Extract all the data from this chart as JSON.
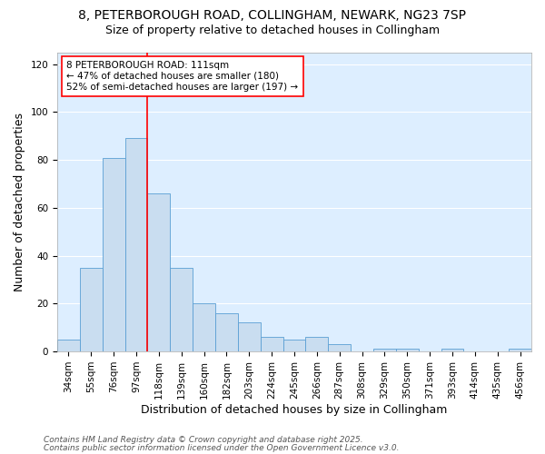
{
  "title_line1": "8, PETERBOROUGH ROAD, COLLINGHAM, NEWARK, NG23 7SP",
  "title_line2": "Size of property relative to detached houses in Collingham",
  "xlabel": "Distribution of detached houses by size in Collingham",
  "ylabel": "Number of detached properties",
  "bar_labels": [
    "34sqm",
    "55sqm",
    "76sqm",
    "97sqm",
    "118sqm",
    "139sqm",
    "160sqm",
    "182sqm",
    "203sqm",
    "224sqm",
    "245sqm",
    "266sqm",
    "287sqm",
    "308sqm",
    "329sqm",
    "350sqm",
    "371sqm",
    "393sqm",
    "414sqm",
    "435sqm",
    "456sqm"
  ],
  "bar_values": [
    5,
    35,
    81,
    89,
    66,
    35,
    20,
    16,
    12,
    6,
    5,
    6,
    3,
    0,
    1,
    1,
    0,
    1,
    0,
    0,
    1
  ],
  "bar_color": "#c9ddf0",
  "bar_edge_color": "#5a9fd4",
  "ylim": [
    0,
    125
  ],
  "yticks": [
    0,
    20,
    40,
    60,
    80,
    100,
    120
  ],
  "red_line_x": 3.5,
  "annotation_text": "8 PETERBOROUGH ROAD: 111sqm\n← 47% of detached houses are smaller (180)\n52% of semi-detached houses are larger (197) →",
  "footnote1": "Contains HM Land Registry data © Crown copyright and database right 2025.",
  "footnote2": "Contains public sector information licensed under the Open Government Licence v3.0.",
  "fig_bg_color": "#ffffff",
  "plot_bg_color": "#ddeeff",
  "grid_color": "#ffffff",
  "title_fontsize": 10,
  "subtitle_fontsize": 9,
  "axis_label_fontsize": 9,
  "tick_fontsize": 7.5,
  "annotation_fontsize": 7.5,
  "footnote_fontsize": 6.5
}
